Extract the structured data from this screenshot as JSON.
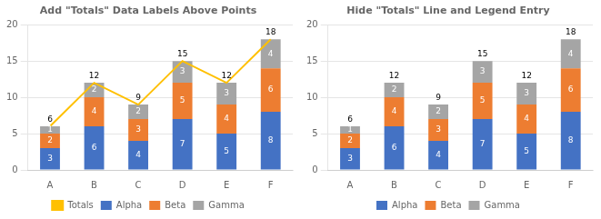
{
  "chart_data": [
    {
      "type": "bar",
      "title": "Add \"Totals\" Data Labels Above Points",
      "stacked": true,
      "categories": [
        "A",
        "B",
        "C",
        "D",
        "E",
        "F"
      ],
      "series": [
        {
          "name": "Alpha",
          "color": "#4472C4",
          "values": [
            3,
            6,
            4,
            7,
            5,
            8
          ],
          "data_labels": true
        },
        {
          "name": "Beta",
          "color": "#ED7D31",
          "values": [
            2,
            4,
            3,
            5,
            4,
            6
          ],
          "data_labels": true
        },
        {
          "name": "Gamma",
          "color": "#A5A5A5",
          "values": [
            1,
            2,
            2,
            3,
            3,
            4
          ],
          "data_labels": true
        },
        {
          "name": "Totals",
          "type": "line",
          "color": "#FFC000",
          "values": [
            6,
            12,
            9,
            15,
            12,
            18
          ],
          "data_labels": true
        }
      ],
      "ylim": [
        0,
        20
      ],
      "yticks": [
        0,
        5,
        10,
        15,
        20
      ],
      "grid": true,
      "legend": "bottom"
    },
    {
      "type": "bar",
      "title": "Hide \"Totals\" Line and Legend Entry",
      "stacked": true,
      "categories": [
        "A",
        "B",
        "C",
        "D",
        "E",
        "F"
      ],
      "series": [
        {
          "name": "Alpha",
          "color": "#4472C4",
          "values": [
            3,
            6,
            4,
            7,
            5,
            8
          ],
          "data_labels": true
        },
        {
          "name": "Beta",
          "color": "#ED7D31",
          "values": [
            2,
            4,
            3,
            5,
            4,
            6
          ],
          "data_labels": true
        },
        {
          "name": "Gamma",
          "color": "#A5A5A5",
          "values": [
            1,
            2,
            2,
            3,
            3,
            4
          ],
          "data_labels": true
        }
      ],
      "totals": [
        6,
        12,
        9,
        15,
        12,
        18
      ],
      "ylim": [
        0,
        20
      ],
      "yticks": [
        0,
        5,
        10,
        15,
        20
      ],
      "grid": true,
      "legend": "bottom"
    }
  ]
}
